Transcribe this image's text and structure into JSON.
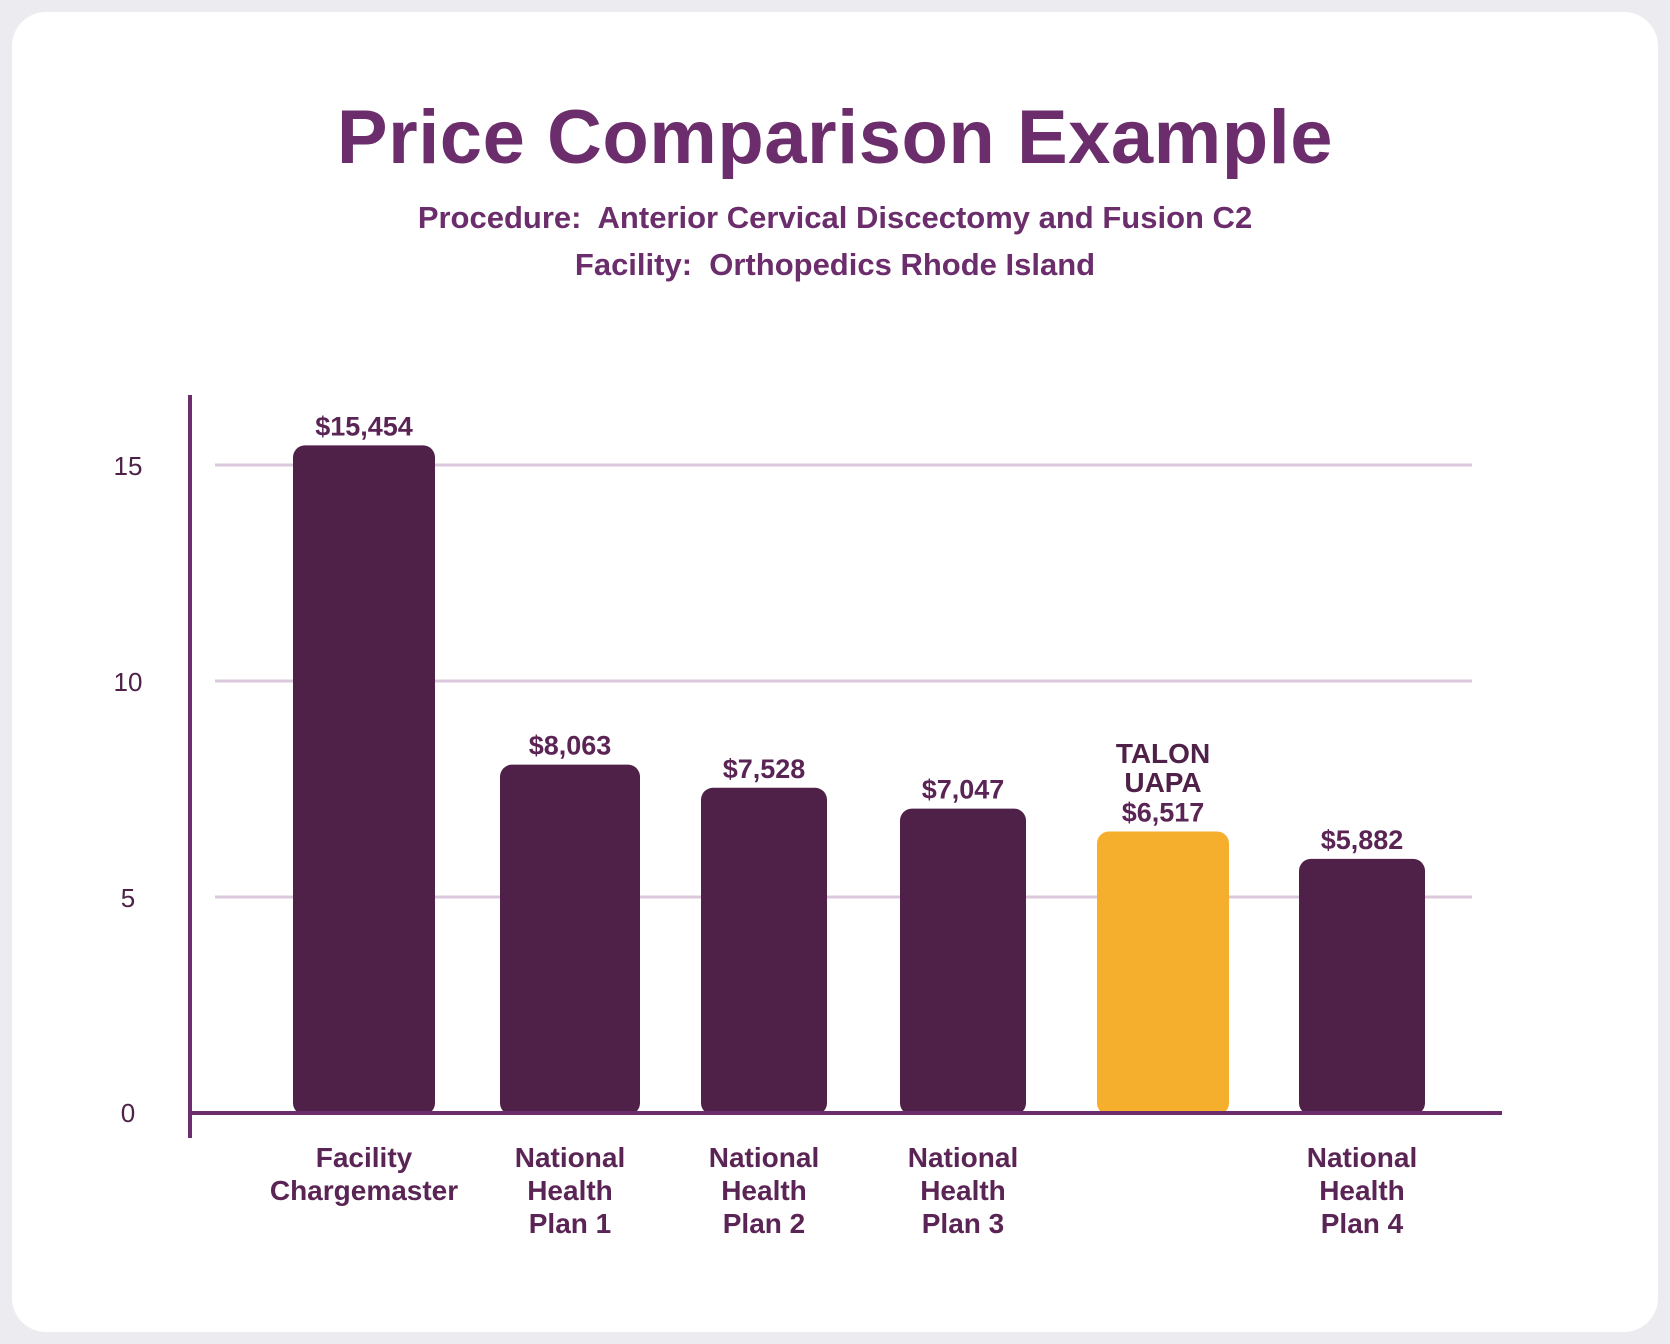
{
  "colors": {
    "title": "#6b2d6b",
    "bar": "#4f2148",
    "highlight": "#f6ae2d",
    "grid": "#dcc8dc",
    "axis": "#6b2d6b"
  },
  "chart_data": {
    "type": "bar",
    "title": "Price Comparison Example",
    "subtitle_lines": [
      "Procedure:  Anterior Cervical Discectomy and Fusion C2",
      "Facility:  Orthopedics Rhode Island"
    ],
    "categories": [
      [
        "Facility",
        "Chargemaster"
      ],
      [
        "National",
        "Health",
        "Plan 1"
      ],
      [
        "National",
        "Health",
        "Plan 2"
      ],
      [
        "National",
        "Health",
        "Plan 3"
      ],
      [],
      [
        "National",
        "Health",
        "Plan 4"
      ]
    ],
    "values": [
      15.454,
      8.063,
      7.528,
      7.047,
      6.517,
      5.882
    ],
    "value_labels": [
      "$15,454",
      "$8,063",
      "$7,528",
      "$7,047",
      "$6,517",
      "$5,882"
    ],
    "highlight_index": 4,
    "annotation": [
      "TALON",
      "UAPA"
    ],
    "y_ticks": [
      "0",
      "5",
      "10",
      "15"
    ],
    "ylim": [
      0,
      15.4
    ],
    "grid": true,
    "legend": "none"
  }
}
